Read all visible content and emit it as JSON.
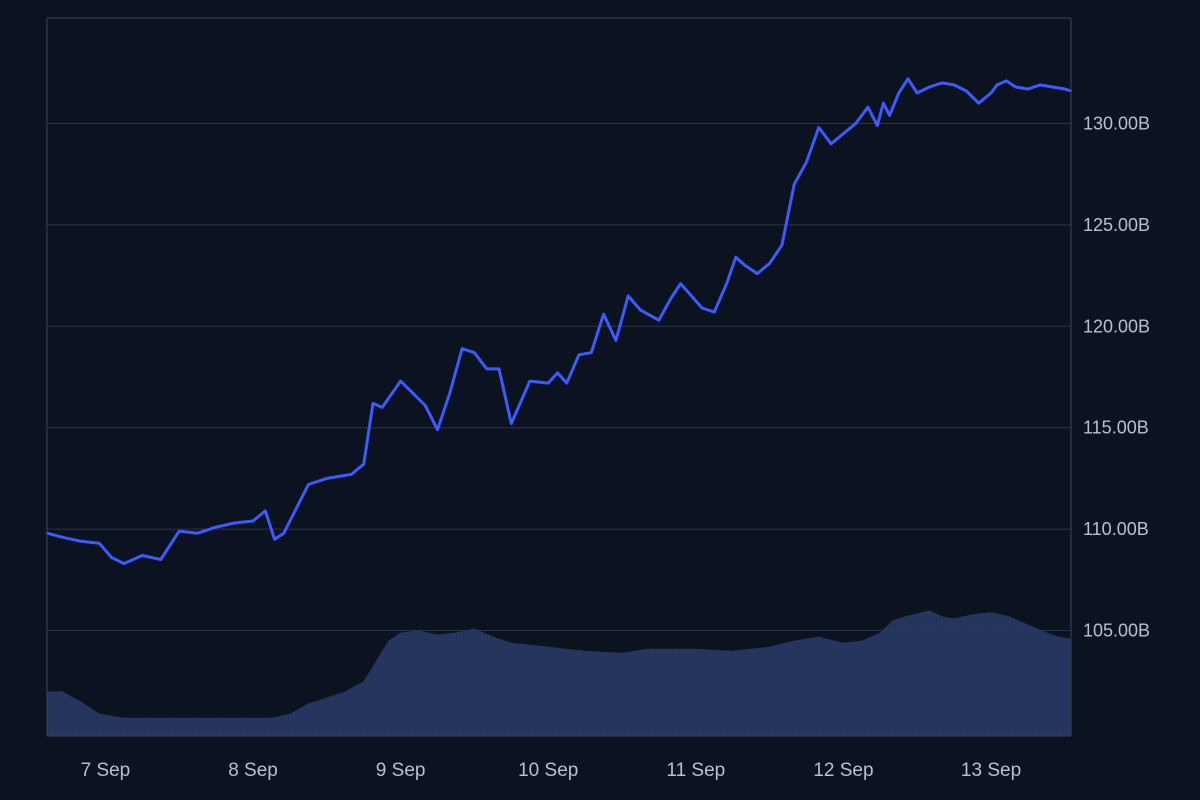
{
  "chart_data": {
    "type": "line",
    "title": "",
    "xlabel": "",
    "ylabel": "",
    "grid": true,
    "y_axis_position": "right",
    "ylim": [
      99.8,
      135.2
    ],
    "xlim": [
      "2023-09-06T14:30",
      "2023-09-13T13:00"
    ],
    "y_ticks": [
      105,
      110,
      115,
      120,
      125,
      130
    ],
    "y_tick_labels": [
      "105.00B",
      "110.00B",
      "115.00B",
      "120.00B",
      "125.00B",
      "130.00B"
    ],
    "x_ticks": [
      "2023-09-07T00:00",
      "2023-09-08T00:00",
      "2023-09-09T00:00",
      "2023-09-10T00:00",
      "2023-09-11T00:00",
      "2023-09-12T00:00",
      "2023-09-13T00:00"
    ],
    "x_tick_labels": [
      "7 Sep",
      "8 Sep",
      "9 Sep",
      "10 Sep",
      "11 Sep",
      "12 Sep",
      "13 Sep"
    ],
    "series": [
      {
        "type": "line",
        "color": "#3d5afe",
        "x": [
          "2023-09-06T14:30",
          "2023-09-06T17:00",
          "2023-09-06T20:00",
          "2023-09-06T23:00",
          "2023-09-07T01:00",
          "2023-09-07T03:00",
          "2023-09-07T06:00",
          "2023-09-07T09:00",
          "2023-09-07T12:00",
          "2023-09-07T15:00",
          "2023-09-07T18:00",
          "2023-09-07T21:00",
          "2023-09-08T00:00",
          "2023-09-08T02:00",
          "2023-09-08T03:30",
          "2023-09-08T05:00",
          "2023-09-08T07:00",
          "2023-09-08T09:00",
          "2023-09-08T12:00",
          "2023-09-08T14:00",
          "2023-09-08T16:00",
          "2023-09-08T18:00",
          "2023-09-08T19:30",
          "2023-09-08T21:00",
          "2023-09-09T00:00",
          "2023-09-09T02:00",
          "2023-09-09T04:00",
          "2023-09-09T06:00",
          "2023-09-09T08:00",
          "2023-09-09T10:00",
          "2023-09-09T12:00",
          "2023-09-09T14:00",
          "2023-09-09T16:00",
          "2023-09-09T18:00",
          "2023-09-09T21:00",
          "2023-09-10T00:00",
          "2023-09-10T01:30",
          "2023-09-10T03:00",
          "2023-09-10T05:00",
          "2023-09-10T07:00",
          "2023-09-10T09:00",
          "2023-09-10T11:00",
          "2023-09-10T13:00",
          "2023-09-10T15:00",
          "2023-09-10T18:00",
          "2023-09-10T20:00",
          "2023-09-10T21:30",
          "2023-09-10T23:00",
          "2023-09-11T01:00",
          "2023-09-11T03:00",
          "2023-09-11T05:00",
          "2023-09-11T06:30",
          "2023-09-11T08:00",
          "2023-09-11T10:00",
          "2023-09-11T12:00",
          "2023-09-11T14:00",
          "2023-09-11T16:00",
          "2023-09-11T18:00",
          "2023-09-11T20:00",
          "2023-09-11T22:00",
          "2023-09-12T00:00",
          "2023-09-12T02:00",
          "2023-09-12T04:00",
          "2023-09-12T05:30",
          "2023-09-12T06:30",
          "2023-09-12T07:30",
          "2023-09-12T09:00",
          "2023-09-12T10:30",
          "2023-09-12T12:00",
          "2023-09-12T14:00",
          "2023-09-12T16:00",
          "2023-09-12T18:00",
          "2023-09-12T20:00",
          "2023-09-12T22:00",
          "2023-09-13T00:00",
          "2023-09-13T01:00",
          "2023-09-13T02:30",
          "2023-09-13T04:00",
          "2023-09-13T06:00",
          "2023-09-13T08:00",
          "2023-09-13T10:00",
          "2023-09-13T12:00",
          "2023-09-13T13:00"
        ],
        "values": [
          109.8,
          109.6,
          109.4,
          109.3,
          108.6,
          108.3,
          108.7,
          108.5,
          109.9,
          109.8,
          110.1,
          110.3,
          110.4,
          110.9,
          109.5,
          109.8,
          111.0,
          112.2,
          112.5,
          112.6,
          112.7,
          113.2,
          116.2,
          116.0,
          117.3,
          116.7,
          116.1,
          114.9,
          116.7,
          118.9,
          118.7,
          117.9,
          117.9,
          115.2,
          117.3,
          117.2,
          117.7,
          117.2,
          118.6,
          118.7,
          120.6,
          119.3,
          121.5,
          120.8,
          120.3,
          121.4,
          122.1,
          121.6,
          120.9,
          120.7,
          122.1,
          123.4,
          123.0,
          122.6,
          123.1,
          124.0,
          127.0,
          128.1,
          129.8,
          129.0,
          129.5,
          130.0,
          130.8,
          129.9,
          131.0,
          130.4,
          131.5,
          132.2,
          131.5,
          131.8,
          132.0,
          131.9,
          131.6,
          131.0,
          131.5,
          131.9,
          132.1,
          131.8,
          131.7,
          131.9,
          131.8,
          131.7,
          131.6
        ],
        "label_note": ""
      },
      {
        "type": "area",
        "color": "#2a3a66",
        "x": [
          "2023-09-06T14:30",
          "2023-09-06T17:00",
          "2023-09-06T20:00",
          "2023-09-06T23:00",
          "2023-09-07T03:00",
          "2023-09-07T09:00",
          "2023-09-07T15:00",
          "2023-09-07T21:00",
          "2023-09-08T03:00",
          "2023-09-08T06:00",
          "2023-09-08T09:00",
          "2023-09-08T12:00",
          "2023-09-08T15:00",
          "2023-09-08T18:00",
          "2023-09-08T20:00",
          "2023-09-08T22:00",
          "2023-09-09T00:00",
          "2023-09-09T03:00",
          "2023-09-09T06:00",
          "2023-09-09T09:00",
          "2023-09-09T12:00",
          "2023-09-09T15:00",
          "2023-09-09T18:00",
          "2023-09-10T00:00",
          "2023-09-10T06:00",
          "2023-09-10T12:00",
          "2023-09-10T16:00",
          "2023-09-10T20:00",
          "2023-09-11T00:00",
          "2023-09-11T06:00",
          "2023-09-11T12:00",
          "2023-09-11T16:00",
          "2023-09-11T20:00",
          "2023-09-12T00:00",
          "2023-09-12T03:00",
          "2023-09-12T06:00",
          "2023-09-12T08:00",
          "2023-09-12T10:00",
          "2023-09-12T14:00",
          "2023-09-12T16:00",
          "2023-09-12T18:00",
          "2023-09-12T21:00",
          "2023-09-13T00:00",
          "2023-09-13T03:00",
          "2023-09-13T06:00",
          "2023-09-13T09:00",
          "2023-09-13T11:00",
          "2023-09-13T13:00"
        ],
        "values": [
          102.0,
          102.0,
          101.5,
          100.9,
          100.7,
          100.7,
          100.7,
          100.7,
          100.7,
          100.9,
          101.4,
          101.7,
          102.0,
          102.5,
          103.5,
          104.5,
          104.9,
          105.0,
          104.8,
          104.9,
          105.1,
          104.7,
          104.4,
          104.2,
          104.0,
          103.9,
          104.1,
          104.1,
          104.1,
          104.0,
          104.2,
          104.5,
          104.7,
          104.4,
          104.5,
          104.9,
          105.5,
          105.7,
          106.0,
          105.7,
          105.6,
          105.8,
          105.9,
          105.7,
          105.3,
          104.9,
          104.7,
          104.6
        ]
      }
    ]
  }
}
